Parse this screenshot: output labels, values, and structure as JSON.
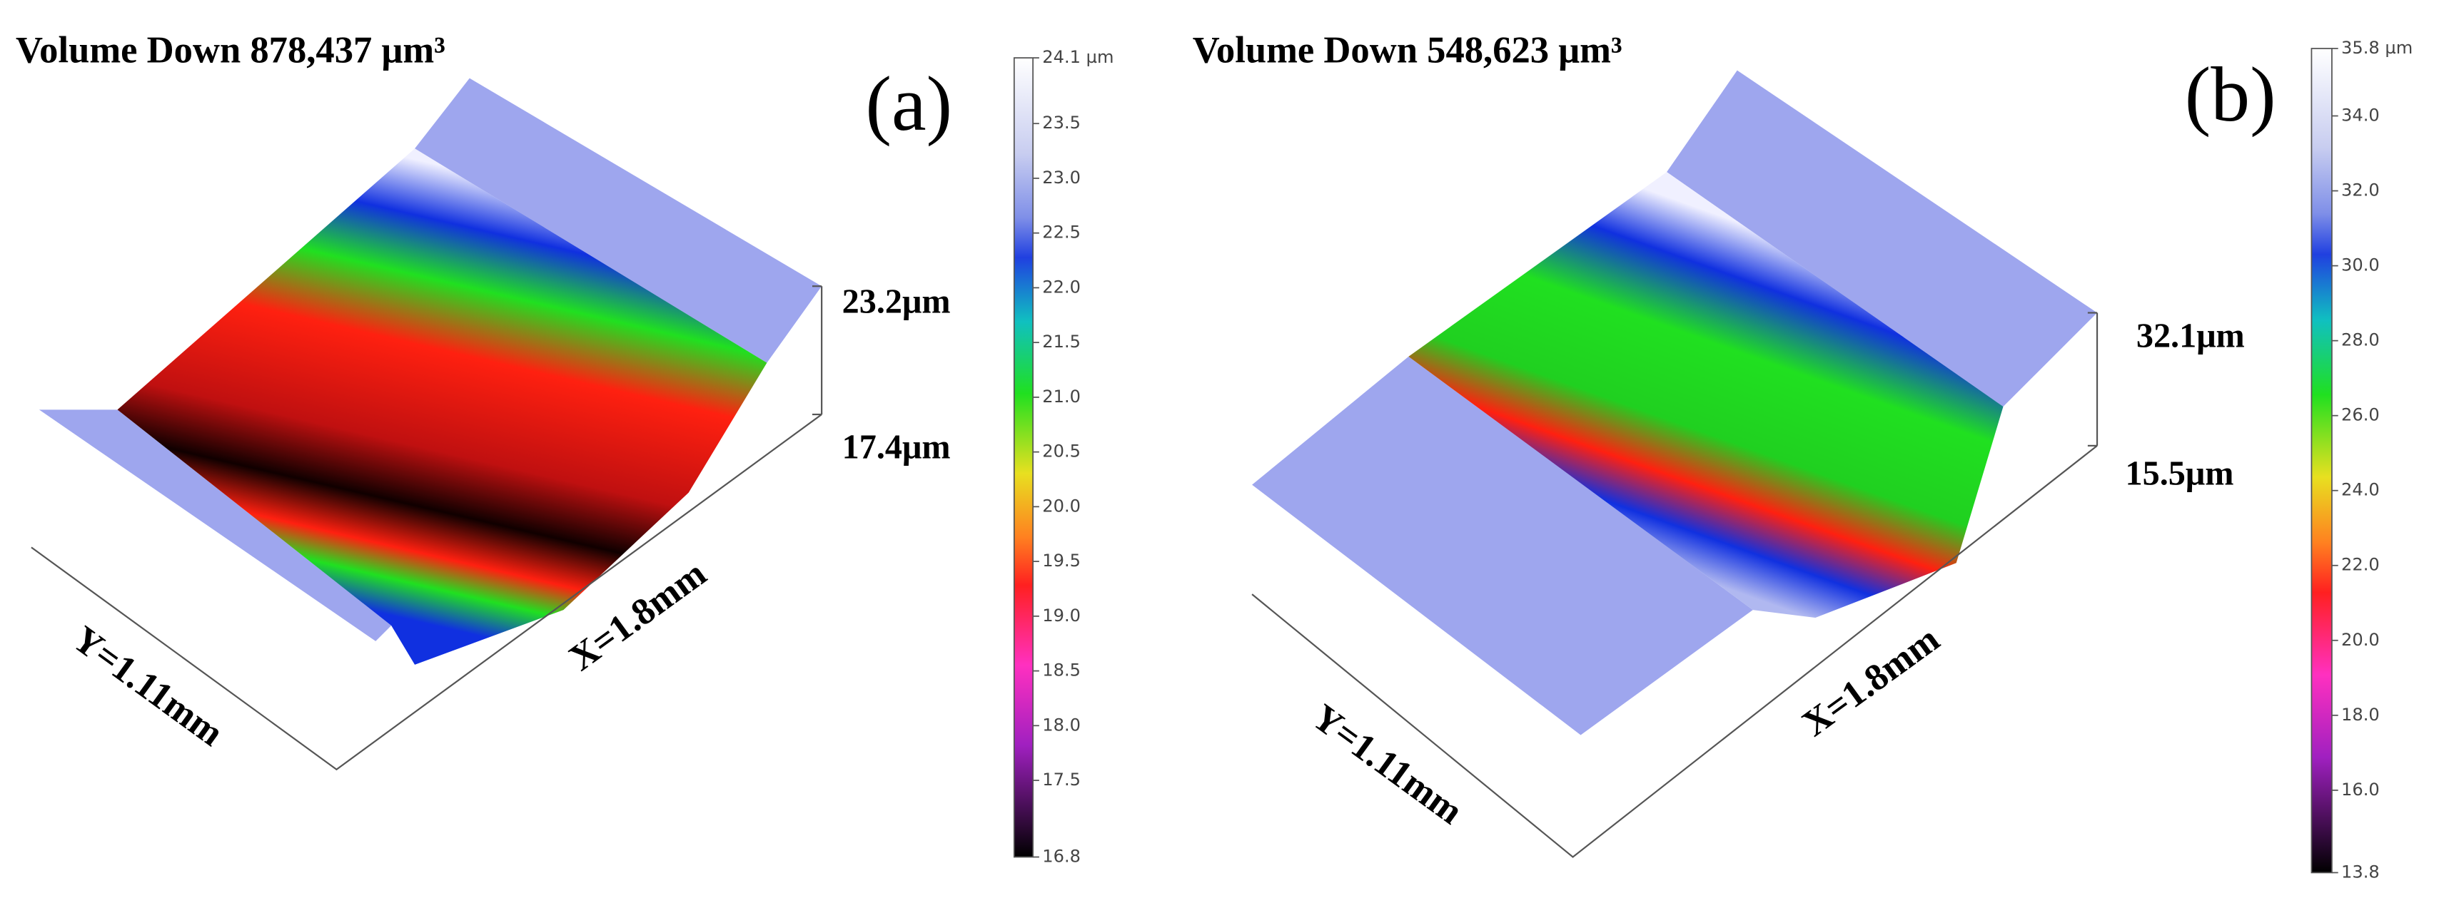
{
  "panels": [
    {
      "title": "Volume Down 878,437 μm³",
      "label": "(a)",
      "z_top": "23.2μm",
      "z_bottom": "17.4μm",
      "x_axis": "X=1.8mm",
      "y_axis": "Y=1.11mm",
      "colorbar": {
        "lim": [
          16.8,
          24.1
        ],
        "ticks": [
          {
            "value": 24.1,
            "label": "24.1 µm"
          },
          23.5,
          {
            "value": 23,
            "label": "23.0"
          },
          22.5,
          {
            "value": 22,
            "label": "22.0"
          },
          21.5,
          {
            "value": 21,
            "label": "21.0"
          },
          20.5,
          {
            "value": 20,
            "label": "20.0"
          },
          19.5,
          {
            "value": 19,
            "label": "19.0"
          },
          18.5,
          {
            "value": 18,
            "label": "18.0"
          },
          17.5,
          16.8
        ]
      }
    },
    {
      "title": "Volume Down 548,623 μm³",
      "label": "(b)",
      "z_top": "32.1μm",
      "z_bottom": "15.5μm",
      "x_axis": "X=1.8mm",
      "y_axis": "Y=1.11mm",
      "colorbar": {
        "lim": [
          13.8,
          35.8
        ],
        "ticks": [
          {
            "value": 35.8,
            "label": "35.8 µm"
          },
          {
            "value": 34,
            "label": "34.0"
          },
          {
            "value": 32,
            "label": "32.0"
          },
          {
            "value": 30,
            "label": "30.0"
          },
          {
            "value": 28,
            "label": "28.0"
          },
          {
            "value": 26,
            "label": "26.0"
          },
          {
            "value": 24,
            "label": "24.0"
          },
          {
            "value": 22,
            "label": "22.0"
          },
          {
            "value": 20,
            "label": "20.0"
          },
          {
            "value": 18,
            "label": "18.0"
          },
          {
            "value": 16,
            "label": "16.0"
          },
          13.8
        ]
      }
    }
  ]
}
